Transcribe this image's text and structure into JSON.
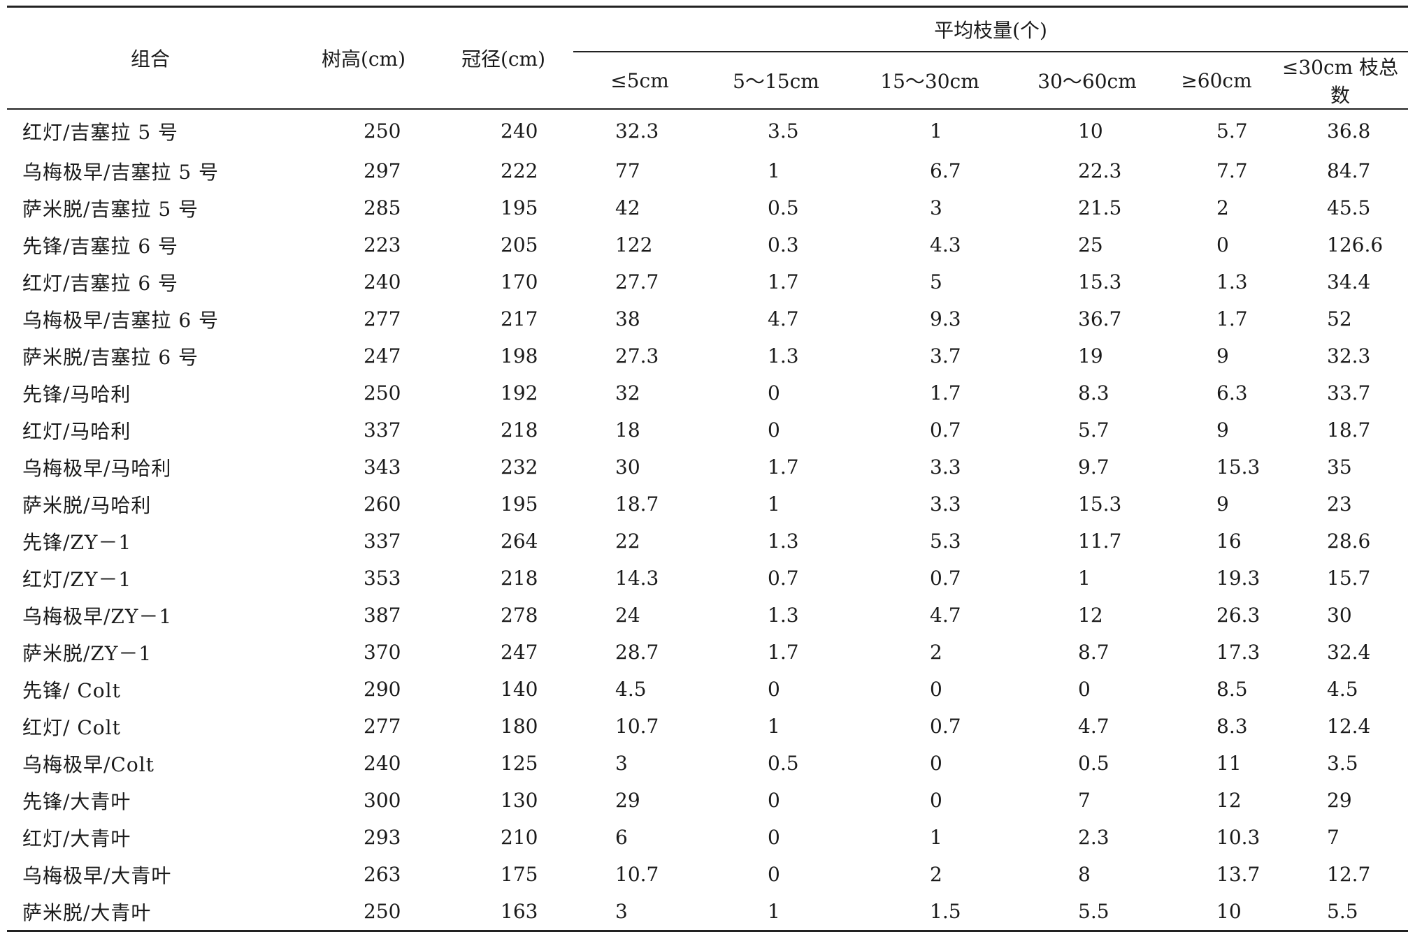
{
  "table": {
    "headers": {
      "combination": "组合",
      "tree_height": "树高(cm)",
      "crown_diameter": "冠径(cm)",
      "group": "平均枝量(个)",
      "sub": [
        "≤5cm",
        "5～15cm",
        "15～30cm",
        "30～60cm",
        "≥60cm",
        "≤30cm 枝总数"
      ]
    },
    "rows": [
      [
        "红灯/吉塞拉 5 号",
        "250",
        "240",
        "32.3",
        "3.5",
        "1",
        "10",
        "5.7",
        "36.8"
      ],
      [
        "乌梅极早/吉塞拉 5 号",
        "297",
        "222",
        "77",
        "1",
        "6.7",
        "22.3",
        "7.7",
        "84.7"
      ],
      [
        "萨米脱/吉塞拉 5 号",
        "285",
        "195",
        "42",
        "0.5",
        "3",
        "21.5",
        "2",
        "45.5"
      ],
      [
        "先锋/吉塞拉 6 号",
        "223",
        "205",
        "122",
        "0.3",
        "4.3",
        "25",
        "0",
        "126.6"
      ],
      [
        "红灯/吉塞拉 6 号",
        "240",
        "170",
        "27.7",
        "1.7",
        "5",
        "15.3",
        "1.3",
        "34.4"
      ],
      [
        "乌梅极早/吉塞拉 6 号",
        "277",
        "217",
        "38",
        "4.7",
        "9.3",
        "36.7",
        "1.7",
        "52"
      ],
      [
        "萨米脱/吉塞拉 6 号",
        "247",
        "198",
        "27.3",
        "1.3",
        "3.7",
        "19",
        "9",
        "32.3"
      ],
      [
        "先锋/马哈利",
        "250",
        "192",
        "32",
        "0",
        "1.7",
        "8.3",
        "6.3",
        "33.7"
      ],
      [
        "红灯/马哈利",
        "337",
        "218",
        "18",
        "0",
        "0.7",
        "5.7",
        "9",
        "18.7"
      ],
      [
        "乌梅极早/马哈利",
        "343",
        "232",
        "30",
        "1.7",
        "3.3",
        "9.7",
        "15.3",
        "35"
      ],
      [
        "萨米脱/马哈利",
        "260",
        "195",
        "18.7",
        "1",
        "3.3",
        "15.3",
        "9",
        "23"
      ],
      [
        "先锋/ZY－1",
        "337",
        "264",
        "22",
        "1.3",
        "5.3",
        "11.7",
        "16",
        "28.6"
      ],
      [
        "红灯/ZY－1",
        "353",
        "218",
        "14.3",
        "0.7",
        "0.7",
        "1",
        "19.3",
        "15.7"
      ],
      [
        "乌梅极早/ZY－1",
        "387",
        "278",
        "24",
        "1.3",
        "4.7",
        "12",
        "26.3",
        "30"
      ],
      [
        "萨米脱/ZY－1",
        "370",
        "247",
        "28.7",
        "1.7",
        "2",
        "8.7",
        "17.3",
        "32.4"
      ],
      [
        "先锋/ Colt",
        "290",
        "140",
        "4.5",
        "0",
        "0",
        "0",
        "8.5",
        "4.5"
      ],
      [
        "红灯/ Colt",
        "277",
        "180",
        "10.7",
        "1",
        "0.7",
        "4.7",
        "8.3",
        "12.4"
      ],
      [
        "乌梅极早/Colt",
        "240",
        "125",
        "3",
        "0.5",
        "0",
        "0.5",
        "11",
        "3.5"
      ],
      [
        "先锋/大青叶",
        "300",
        "130",
        "29",
        "0",
        "0",
        "7",
        "12",
        "29"
      ],
      [
        "红灯/大青叶",
        "293",
        "210",
        "6",
        "0",
        "1",
        "2.3",
        "10.3",
        "7"
      ],
      [
        "乌梅极早/大青叶",
        "263",
        "175",
        "10.7",
        "0",
        "2",
        "8",
        "13.7",
        "12.7"
      ],
      [
        "萨米脱/大青叶",
        "250",
        "163",
        "3",
        "1",
        "1.5",
        "5.5",
        "10",
        "5.5"
      ]
    ]
  }
}
